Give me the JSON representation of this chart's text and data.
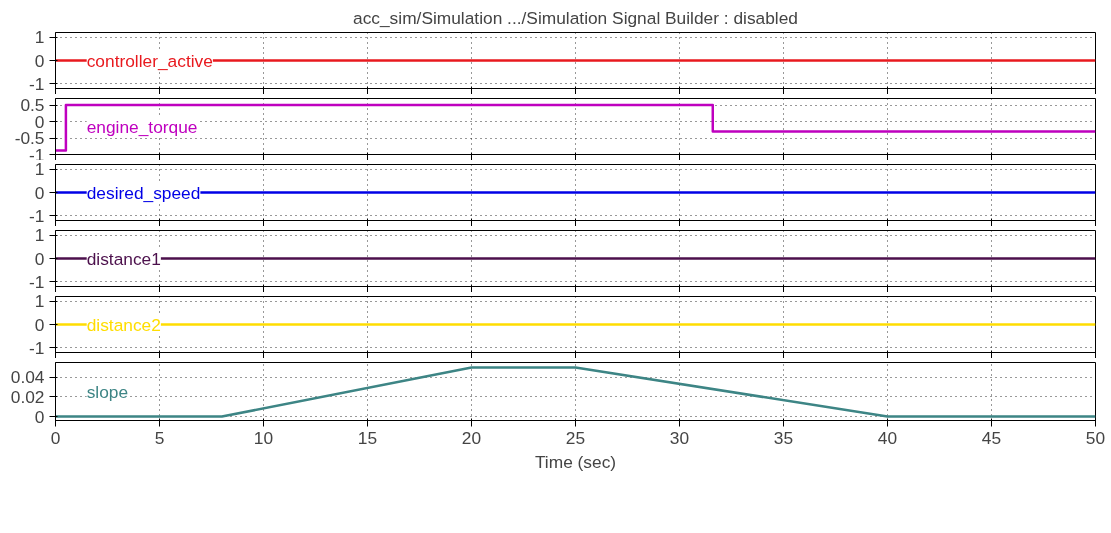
{
  "chart_data": [
    {
      "type": "step",
      "title": "acc_sim/Simulation .../Simulation Signal Builder : disabled",
      "xlim": [
        0,
        50
      ],
      "xticks": [
        0,
        5,
        10,
        15,
        20,
        25,
        30,
        35,
        40,
        45,
        50
      ],
      "ylim": [
        -1.2,
        1.2
      ],
      "yticks": [
        -1,
        0,
        1
      ],
      "grid": true,
      "tick_labels": "y",
      "series": [
        {
          "name": "controller_active",
          "color": "#e8191e",
          "x": [
            0,
            50
          ],
          "values": [
            0,
            0
          ]
        }
      ]
    },
    {
      "type": "step",
      "xlim": [
        0,
        50
      ],
      "xticks": [
        0,
        5,
        10,
        15,
        20,
        25,
        30,
        35,
        40,
        45,
        50
      ],
      "ylim": [
        -1,
        0.7
      ],
      "yticks": [
        -1,
        -0.5,
        0,
        0.5
      ],
      "grid": true,
      "tick_labels": "y",
      "series": [
        {
          "name": "engine_torque",
          "color": "#bf00bf",
          "x": [
            0,
            0.5,
            31.6,
            50
          ],
          "values": [
            -0.88,
            0.5,
            -0.3,
            -0.3
          ]
        }
      ]
    },
    {
      "type": "step",
      "xlim": [
        0,
        50
      ],
      "xticks": [
        0,
        5,
        10,
        15,
        20,
        25,
        30,
        35,
        40,
        45,
        50
      ],
      "ylim": [
        -1.2,
        1.2
      ],
      "yticks": [
        -1,
        0,
        1
      ],
      "grid": true,
      "tick_labels": "y",
      "series": [
        {
          "name": "desired_speed",
          "color": "#0000e6",
          "x": [
            0,
            50
          ],
          "values": [
            0,
            0
          ]
        }
      ]
    },
    {
      "type": "step",
      "xlim": [
        0,
        50
      ],
      "xticks": [
        0,
        5,
        10,
        15,
        20,
        25,
        30,
        35,
        40,
        45,
        50
      ],
      "ylim": [
        -1.2,
        1.2
      ],
      "yticks": [
        -1,
        0,
        1
      ],
      "grid": true,
      "tick_labels": "y",
      "series": [
        {
          "name": "distance1",
          "color": "#4c104c",
          "x": [
            0,
            50
          ],
          "values": [
            0,
            0
          ]
        }
      ]
    },
    {
      "type": "step",
      "xlim": [
        0,
        50
      ],
      "xticks": [
        0,
        5,
        10,
        15,
        20,
        25,
        30,
        35,
        40,
        45,
        50
      ],
      "ylim": [
        -1.2,
        1.2
      ],
      "yticks": [
        -1,
        0,
        1
      ],
      "grid": true,
      "tick_labels": "y",
      "series": [
        {
          "name": "distance2",
          "color": "#ffdd00",
          "x": [
            0,
            50
          ],
          "values": [
            0,
            0
          ]
        }
      ]
    },
    {
      "type": "line",
      "xlabel": "Time (sec)",
      "xlim": [
        0,
        50
      ],
      "xticks": [
        0,
        5,
        10,
        15,
        20,
        25,
        30,
        35,
        40,
        45,
        50
      ],
      "ylim": [
        -0.004,
        0.055
      ],
      "yticks": [
        0,
        0.02,
        0.04
      ],
      "grid": true,
      "series": [
        {
          "name": "slope",
          "color": "#3d8585",
          "x": [
            0,
            8,
            20,
            25,
            40,
            50
          ],
          "values": [
            0,
            0,
            0.05,
            0.05,
            0,
            0
          ]
        }
      ]
    }
  ]
}
